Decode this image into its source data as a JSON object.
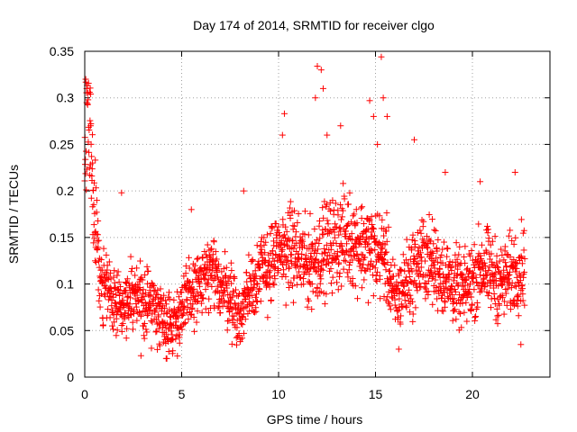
{
  "chart_data": {
    "type": "scatter",
    "title": "Day 174 of 2014, SRMTID for receiver clgo",
    "xlabel": "GPS time / hours",
    "ylabel": "SRMTID / TECUs",
    "xlim": [
      0,
      24
    ],
    "ylim": [
      0,
      0.35
    ],
    "grid": true,
    "marker": "plus",
    "color": "#ff0000",
    "xticks": [
      0,
      5,
      10,
      15,
      20
    ],
    "xtick_labels": [
      "0",
      "5",
      "10",
      "15",
      "20"
    ],
    "yticks": [
      0,
      0.05,
      0.1,
      0.15,
      0.2,
      0.25,
      0.3,
      0.35
    ],
    "ytick_labels": [
      "0",
      "0.05",
      "0.1",
      "0.15",
      "0.2",
      "0.25",
      "0.3",
      "0.35"
    ],
    "x_data_range": [
      0,
      22.7
    ],
    "trend": [
      {
        "x": 0.0,
        "y": 0.22
      },
      {
        "x": 0.2,
        "y": 0.28
      },
      {
        "x": 0.5,
        "y": 0.18
      },
      {
        "x": 0.8,
        "y": 0.1
      },
      {
        "x": 1.5,
        "y": 0.085
      },
      {
        "x": 2.5,
        "y": 0.085
      },
      {
        "x": 3.5,
        "y": 0.08
      },
      {
        "x": 4.5,
        "y": 0.055
      },
      {
        "x": 5.5,
        "y": 0.09
      },
      {
        "x": 6.5,
        "y": 0.11
      },
      {
        "x": 7.5,
        "y": 0.09
      },
      {
        "x": 8.0,
        "y": 0.06
      },
      {
        "x": 8.5,
        "y": 0.1
      },
      {
        "x": 9.5,
        "y": 0.12
      },
      {
        "x": 10.5,
        "y": 0.14
      },
      {
        "x": 11.5,
        "y": 0.12
      },
      {
        "x": 12.5,
        "y": 0.14
      },
      {
        "x": 13.5,
        "y": 0.15
      },
      {
        "x": 14.5,
        "y": 0.14
      },
      {
        "x": 15.5,
        "y": 0.13
      },
      {
        "x": 16.0,
        "y": 0.08
      },
      {
        "x": 16.5,
        "y": 0.1
      },
      {
        "x": 17.5,
        "y": 0.13
      },
      {
        "x": 18.5,
        "y": 0.11
      },
      {
        "x": 19.5,
        "y": 0.09
      },
      {
        "x": 20.5,
        "y": 0.12
      },
      {
        "x": 21.5,
        "y": 0.1
      },
      {
        "x": 22.5,
        "y": 0.12
      }
    ],
    "peaks": [
      {
        "x": 0.05,
        "y": 0.32
      },
      {
        "x": 0.1,
        "y": 0.31
      },
      {
        "x": 0.3,
        "y": 0.27
      },
      {
        "x": 0.4,
        "y": 0.23
      },
      {
        "x": 1.9,
        "y": 0.198
      },
      {
        "x": 2.9,
        "y": 0.023
      },
      {
        "x": 4.2,
        "y": 0.02
      },
      {
        "x": 5.5,
        "y": 0.18
      },
      {
        "x": 8.2,
        "y": 0.2
      },
      {
        "x": 10.2,
        "y": 0.26
      },
      {
        "x": 10.3,
        "y": 0.283
      },
      {
        "x": 11.9,
        "y": 0.3
      },
      {
        "x": 12.0,
        "y": 0.334
      },
      {
        "x": 12.2,
        "y": 0.33
      },
      {
        "x": 12.3,
        "y": 0.31
      },
      {
        "x": 12.5,
        "y": 0.26
      },
      {
        "x": 13.2,
        "y": 0.27
      },
      {
        "x": 14.7,
        "y": 0.297
      },
      {
        "x": 14.9,
        "y": 0.28
      },
      {
        "x": 15.1,
        "y": 0.25
      },
      {
        "x": 15.3,
        "y": 0.344
      },
      {
        "x": 15.4,
        "y": 0.3
      },
      {
        "x": 15.6,
        "y": 0.28
      },
      {
        "x": 16.2,
        "y": 0.03
      },
      {
        "x": 17.0,
        "y": 0.255
      },
      {
        "x": 18.6,
        "y": 0.22
      },
      {
        "x": 20.4,
        "y": 0.21
      },
      {
        "x": 22.2,
        "y": 0.22
      },
      {
        "x": 22.5,
        "y": 0.035
      }
    ],
    "points": []
  }
}
